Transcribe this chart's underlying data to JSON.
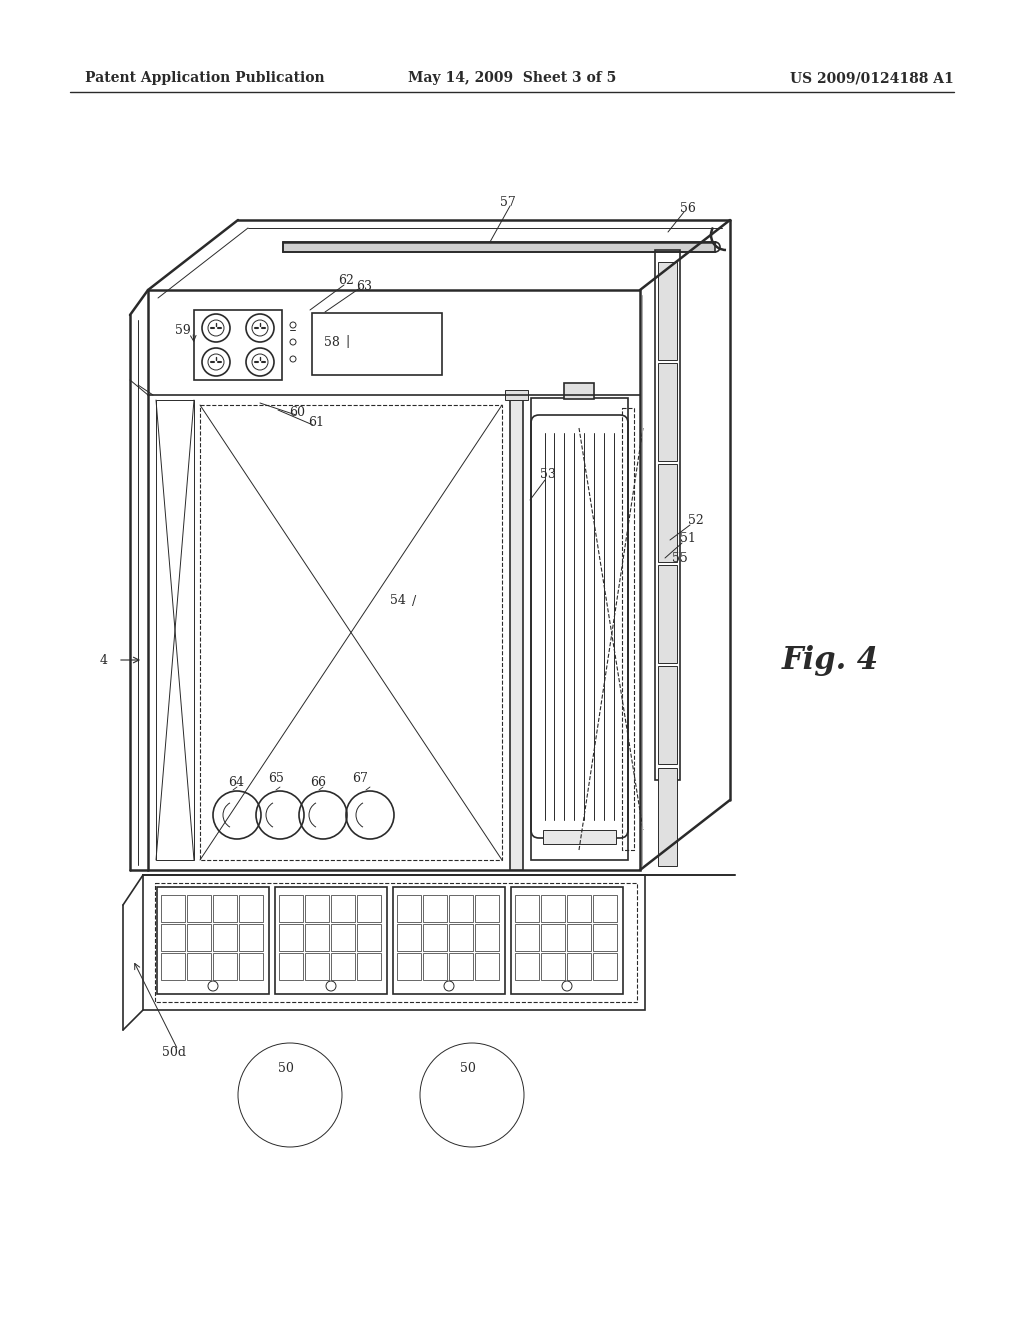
{
  "bg_color": "#ffffff",
  "line_color": "#2a2a2a",
  "header_left": "Patent Application Publication",
  "header_mid": "May 14, 2009  Sheet 3 of 5",
  "header_right": "US 2009/0124188 A1",
  "fig_label": "Fig. 4",
  "lw_thick": 1.8,
  "lw_main": 1.2,
  "lw_thin": 0.7,
  "lw_dashed": 0.8
}
